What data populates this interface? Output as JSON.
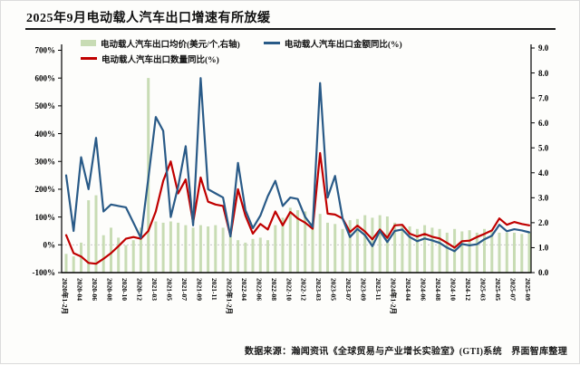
{
  "page": {
    "title": "2025年9月电动载人汽车出口增速有所放缓",
    "footer": "数据来源：瀚闻资讯《全球贸易与产业增长实验室》(GTI)系统　界面智库整理"
  },
  "colors": {
    "bar": "#c8dcb4",
    "amount_line": "#295a87",
    "quantity_line": "#c00000",
    "zero_gridline": "#c9c9c9",
    "axis": "#000000"
  },
  "legend": [
    {
      "label": "电动载人汽车出口均价(美元/个,右轴)",
      "type": "bar",
      "color": "#c8dcb4"
    },
    {
      "label": "电动载人汽车出口金额同比(%)",
      "type": "line",
      "color": "#295a87"
    },
    {
      "label": "电动载人汽车出口数量同比(%)",
      "type": "line",
      "color": "#c00000"
    }
  ],
  "chart_data": {
    "type": "combo",
    "legend_position": "top",
    "grid": "zero-line-only",
    "x_tick_every": 2,
    "categories": [
      "2020年1-2月",
      "2020-03",
      "2020-04",
      "2020-05",
      "2020-06",
      "2020-07",
      "2020-08",
      "2020-09",
      "2020-10",
      "2020-11",
      "2020-12",
      "2021年1-2月",
      "2021-03",
      "2021-04",
      "2021-05",
      "2021-06",
      "2021-07",
      "2021-08",
      "2021-09",
      "2021-10",
      "2021-11",
      "2021-12",
      "2022年1-2月",
      "2022-03",
      "2022-04",
      "2022-05",
      "2022-06",
      "2022-07",
      "2022-08",
      "2022-09",
      "2022-10",
      "2022-11",
      "2022-12",
      "2023年1-2月",
      "2023-03",
      "2023-04",
      "2023-05",
      "2023-06",
      "2023-07",
      "2023-08",
      "2023-09",
      "2023-10",
      "2023-11",
      "2023-12",
      "2024年1-2月",
      "2024-03",
      "2024-04",
      "2024-05",
      "2024-06",
      "2024-07",
      "2024-08",
      "2024-09",
      "2024-10",
      "2024-11",
      "2024-12",
      "2025年1-2月",
      "2025-03",
      "2025-04",
      "2025-05",
      "2025-06",
      "2025-07",
      "2025-08",
      "2025-09"
    ],
    "left_axis": {
      "min": -100,
      "max": 700,
      "step": 100,
      "ticks": [
        "700%",
        "600%",
        "500%",
        "400%",
        "300%",
        "200%",
        "100%",
        "0%",
        "-100%"
      ]
    },
    "right_axis": {
      "min": 0,
      "max": 9,
      "step": 1,
      "ticks": [
        "9.0",
        "8.0",
        "7.0",
        "6.0",
        "5.0",
        "4.0",
        "3.0",
        "2.0",
        "1.0",
        "0.0"
      ]
    },
    "series": [
      {
        "name": "电动载人汽车出口均价(美元/个,右轴)",
        "type": "bar",
        "axis": "right",
        "color": "#c8dcb4",
        "values": [
          0.75,
          0.65,
          1.2,
          2.9,
          3.1,
          1.5,
          1.8,
          1.4,
          1.1,
          1.3,
          1.8,
          7.8,
          2.05,
          2.0,
          2.05,
          2.0,
          1.9,
          1.8,
          1.9,
          1.85,
          1.9,
          1.8,
          1.5,
          1.3,
          1.2,
          1.35,
          1.4,
          1.3,
          1.9,
          2.2,
          2.6,
          2.5,
          2.45,
          2.0,
          2.35,
          2.0,
          1.95,
          1.75,
          2.1,
          2.15,
          2.3,
          2.2,
          2.3,
          2.25,
          2.0,
          1.9,
          1.85,
          1.75,
          1.9,
          1.8,
          1.75,
          1.6,
          1.75,
          1.65,
          1.7,
          1.6,
          1.75,
          1.65,
          1.6,
          1.6,
          1.6,
          1.55,
          1.6
        ]
      },
      {
        "name": "电动载人汽车出口金额同比(%)",
        "type": "line",
        "axis": "left",
        "color": "#295a87",
        "values": [
          250,
          50,
          315,
          200,
          385,
          120,
          145,
          140,
          135,
          80,
          25,
          240,
          460,
          410,
          100,
          210,
          355,
          70,
          600,
          200,
          185,
          170,
          30,
          295,
          125,
          60,
          105,
          175,
          230,
          140,
          170,
          165,
          100,
          65,
          582,
          170,
          248,
          95,
          28,
          57,
          35,
          -5,
          50,
          10,
          50,
          55,
          28,
          13,
          23,
          16,
          7,
          -10,
          -23,
          3,
          -2,
          2,
          20,
          33,
          72,
          49,
          56,
          52,
          45
        ]
      },
      {
        "name": "电动载人汽车出口数量同比(%)",
        "type": "line",
        "axis": "left",
        "color": "#c00000",
        "values": [
          35,
          -30,
          -42,
          -65,
          -68,
          -50,
          -30,
          -5,
          22,
          28,
          22,
          50,
          120,
          230,
          300,
          185,
          235,
          80,
          242,
          155,
          145,
          140,
          32,
          200,
          105,
          40,
          75,
          55,
          120,
          70,
          118,
          95,
          80,
          58,
          330,
          112,
          109,
          95,
          46,
          69,
          48,
          20,
          55,
          25,
          70,
          72,
          40,
          30,
          39,
          29,
          23,
          7,
          -10,
          13,
          15,
          28,
          39,
          52,
          95,
          72,
          82,
          75,
          70
        ]
      }
    ]
  }
}
